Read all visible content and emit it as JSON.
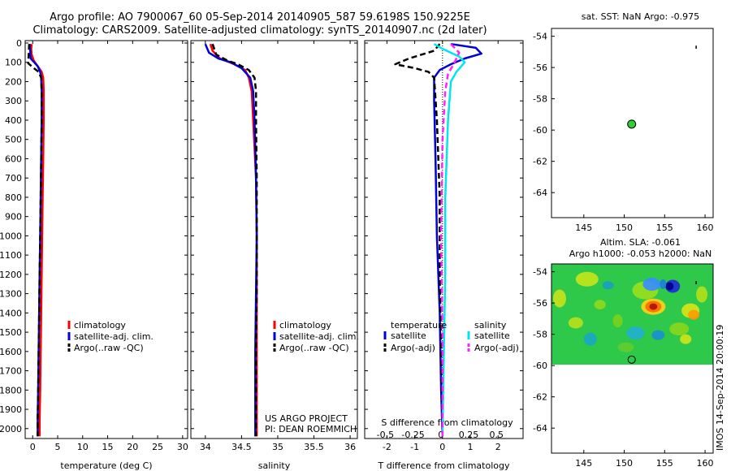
{
  "header": {
    "line1": "Argo profile: AO 7900067_60 05-Sep-2014 20140905_587 59.6198S 150.9225E",
    "line2": "Climatology: CARS2009. Satellite-adjusted climatology: synTS_20140907.nc (2d later)"
  },
  "credits": {
    "project": "US ARGO PROJECT",
    "pi": "PI: DEAN ROEMMICH"
  },
  "side_stamp": "IMOS 14-Sep-2014 20:00:19",
  "colors": {
    "climatology": "#ff0000",
    "satellite": "#0000dd",
    "argo": "#000000",
    "sat_salinity": "#00e5ee",
    "argo_salinity": "#ff22ff"
  },
  "chart_data": [
    {
      "id": "temperature",
      "type": "line",
      "xlabel": "temperature (deg C)",
      "ylabel": "",
      "xlim": [
        -1.5,
        31
      ],
      "ylim": [
        0,
        2060
      ],
      "y_inverted": true,
      "xticks": [
        0,
        5,
        10,
        15,
        20,
        25,
        30
      ],
      "xticklabels": [
        "0",
        "5",
        "10",
        "15",
        "20",
        "25",
        "30"
      ],
      "yticks": [
        0,
        100,
        200,
        300,
        400,
        500,
        600,
        700,
        800,
        900,
        1000,
        1100,
        1200,
        1300,
        1400,
        1500,
        1600,
        1700,
        1800,
        1900,
        2000
      ],
      "yticklabels": [
        "0",
        "100",
        "200",
        "300",
        "400",
        "500",
        "600",
        "700",
        "800",
        "900",
        "1000",
        "1100",
        "1200",
        "1300",
        "1400",
        "1500",
        "1600",
        "1700",
        "1800",
        "1900",
        "2000"
      ],
      "legend": [
        "climatology",
        "satellite-adj. clim.",
        "Argo(..raw -QC)"
      ],
      "series": [
        {
          "name": "climatology",
          "color_key": "climatology",
          "dash": false,
          "points": [
            [
              -0.2,
              5
            ],
            [
              -0.3,
              30
            ],
            [
              -0.2,
              60
            ],
            [
              0.2,
              90
            ],
            [
              1.0,
              120
            ],
            [
              1.8,
              150
            ],
            [
              2.1,
              180
            ],
            [
              2.2,
              250
            ],
            [
              2.2,
              400
            ],
            [
              2.1,
              600
            ],
            [
              2.0,
              800
            ],
            [
              1.9,
              1000
            ],
            [
              1.8,
              1200
            ],
            [
              1.7,
              1400
            ],
            [
              1.6,
              1600
            ],
            [
              1.5,
              1800
            ],
            [
              1.4,
              1950
            ],
            [
              1.4,
              2040
            ]
          ]
        },
        {
          "name": "satellite",
          "color_key": "satellite",
          "dash": false,
          "points": [
            [
              -0.6,
              5
            ],
            [
              -0.5,
              40
            ],
            [
              -0.4,
              80
            ],
            [
              0.3,
              100
            ],
            [
              1.0,
              120
            ],
            [
              1.5,
              150
            ],
            [
              1.7,
              180
            ],
            [
              1.8,
              250
            ],
            [
              1.8,
              400
            ],
            [
              1.7,
              600
            ],
            [
              1.6,
              800
            ],
            [
              1.5,
              1000
            ],
            [
              1.4,
              1200
            ],
            [
              1.3,
              1400
            ],
            [
              1.2,
              1600
            ],
            [
              1.1,
              1800
            ],
            [
              1.0,
              1950
            ],
            [
              1.0,
              2040
            ]
          ]
        },
        {
          "name": "argo",
          "color_key": "argo",
          "dash": true,
          "points": [
            [
              -0.7,
              5
            ],
            [
              -0.8,
              60
            ],
            [
              -0.9,
              105
            ],
            [
              0.0,
              125
            ],
            [
              1.2,
              150
            ],
            [
              1.7,
              180
            ],
            [
              1.8,
              250
            ],
            [
              1.8,
              400
            ],
            [
              1.7,
              600
            ],
            [
              1.6,
              800
            ],
            [
              1.5,
              1000
            ],
            [
              1.4,
              1200
            ],
            [
              1.3,
              1400
            ],
            [
              1.2,
              1600
            ],
            [
              1.1,
              1800
            ],
            [
              1.0,
              1950
            ],
            [
              1.0,
              2040
            ]
          ]
        }
      ]
    },
    {
      "id": "salinity",
      "type": "line",
      "xlabel": "salinity",
      "xlim": [
        33.8,
        36.1
      ],
      "ylim": [
        0,
        2060
      ],
      "y_inverted": true,
      "xticks": [
        34,
        34.5,
        35,
        35.5,
        36
      ],
      "xticklabels": [
        "34",
        "34.5",
        "35",
        "35.5",
        "36"
      ],
      "legend": [
        "climatology",
        "satellite-adj. clim.",
        "Argo(..raw -QC)"
      ],
      "series": [
        {
          "name": "climatology",
          "color_key": "climatology",
          "dash": false,
          "points": [
            [
              34.07,
              5
            ],
            [
              34.1,
              40
            ],
            [
              34.2,
              80
            ],
            [
              34.4,
              110
            ],
            [
              34.55,
              140
            ],
            [
              34.6,
              180
            ],
            [
              34.64,
              250
            ],
            [
              34.66,
              400
            ],
            [
              34.7,
              700
            ],
            [
              34.71,
              1000
            ],
            [
              34.71,
              1300
            ],
            [
              34.71,
              1600
            ],
            [
              34.71,
              2040
            ]
          ]
        },
        {
          "name": "satellite",
          "color_key": "satellite",
          "dash": false,
          "points": [
            [
              34.0,
              5
            ],
            [
              34.05,
              50
            ],
            [
              34.18,
              80
            ],
            [
              34.35,
              100
            ],
            [
              34.5,
              130
            ],
            [
              34.62,
              180
            ],
            [
              34.66,
              250
            ],
            [
              34.68,
              400
            ],
            [
              34.7,
              700
            ],
            [
              34.71,
              1000
            ],
            [
              34.7,
              1300
            ],
            [
              34.69,
              1600
            ],
            [
              34.69,
              2040
            ]
          ]
        },
        {
          "name": "argo",
          "color_key": "argo",
          "dash": true,
          "points": [
            [
              34.1,
              5
            ],
            [
              34.15,
              60
            ],
            [
              34.3,
              90
            ],
            [
              34.45,
              110
            ],
            [
              34.6,
              140
            ],
            [
              34.68,
              180
            ],
            [
              34.7,
              250
            ],
            [
              34.7,
              400
            ],
            [
              34.71,
              700
            ],
            [
              34.71,
              1000
            ],
            [
              34.71,
              1300
            ],
            [
              34.7,
              1600
            ],
            [
              34.7,
              2040
            ]
          ]
        }
      ]
    },
    {
      "id": "difference",
      "type": "line",
      "xlabel": "T difference from climatology",
      "xlabel_top": "S difference from climatology",
      "xlim": [
        -2.8,
        2.9
      ],
      "ylim": [
        0,
        2060
      ],
      "y_inverted": true,
      "xticks": [
        -2,
        -1,
        0,
        1,
        2
      ],
      "xticklabels": [
        "-2",
        "-1",
        "0",
        "1",
        "2"
      ],
      "sticks_label_values": [
        -2,
        -1,
        0,
        1,
        2
      ],
      "sticklabels": [
        "-0.5",
        "-0.25",
        "0",
        "0.25",
        "0.5"
      ],
      "legend_titles": [
        "temperature",
        "salinity"
      ],
      "legend": [
        "satellite",
        "Argo(-adj)",
        "satellite",
        "Argo(-adj)"
      ],
      "series": [
        {
          "name": "T satellite",
          "color_key": "satellite",
          "dash": false,
          "points": [
            [
              0.3,
              5
            ],
            [
              1.2,
              25
            ],
            [
              1.4,
              55
            ],
            [
              0.8,
              80
            ],
            [
              0.3,
              110
            ],
            [
              -0.1,
              140
            ],
            [
              -0.3,
              180
            ],
            [
              -0.3,
              300
            ],
            [
              -0.25,
              600
            ],
            [
              -0.2,
              1000
            ],
            [
              -0.1,
              1400
            ],
            [
              -0.05,
              1800
            ],
            [
              0.0,
              2040
            ]
          ]
        },
        {
          "name": "T Argo",
          "color_key": "argo",
          "dash": true,
          "points": [
            [
              -0.1,
              5
            ],
            [
              -0.3,
              40
            ],
            [
              -1.2,
              80
            ],
            [
              -1.7,
              110
            ],
            [
              -1.0,
              130
            ],
            [
              -0.5,
              150
            ],
            [
              -0.3,
              180
            ],
            [
              -0.2,
              400
            ],
            [
              -0.1,
              800
            ],
            [
              -0.1,
              1200
            ],
            [
              -0.05,
              1600
            ],
            [
              0.0,
              2040
            ]
          ]
        },
        {
          "name": "S satellite",
          "color_key": "sat_salinity",
          "dash": false,
          "points": [
            [
              -0.3,
              5
            ],
            [
              0.0,
              30
            ],
            [
              0.6,
              70
            ],
            [
              0.8,
              100
            ],
            [
              0.5,
              150
            ],
            [
              0.3,
              200
            ],
            [
              0.2,
              400
            ],
            [
              0.1,
              800
            ],
            [
              0.1,
              1200
            ],
            [
              0.05,
              1600
            ],
            [
              0.0,
              2040
            ]
          ]
        },
        {
          "name": "S Argo",
          "color_key": "argo_salinity",
          "dash": true,
          "points": [
            [
              0.3,
              5
            ],
            [
              0.6,
              50
            ],
            [
              0.4,
              110
            ],
            [
              0.2,
              160
            ],
            [
              0.1,
              250
            ],
            [
              0.0,
              500
            ],
            [
              -0.05,
              1000
            ],
            [
              0.0,
              1500
            ],
            [
              0.0,
              2040
            ]
          ]
        }
      ]
    },
    {
      "id": "sst-map",
      "type": "scatter",
      "title": "sat. SST: NaN Argo: -0.975",
      "xlim": [
        141,
        161
      ],
      "ylim": [
        -65.6,
        -53.5
      ],
      "xticks": [
        145,
        150,
        155,
        160
      ],
      "xticklabels": [
        "145",
        "150",
        "155",
        "160"
      ],
      "yticks": [
        -54,
        -56,
        -58,
        -60,
        -62,
        -64
      ],
      "yticklabels": [
        "-54",
        "-56",
        "-58",
        "-60",
        "-62",
        "-64"
      ],
      "argo_position": [
        150.92,
        -59.62
      ],
      "argo_track": [
        [
          158.9,
          -54.6
        ],
        [
          158.9,
          -54.8
        ]
      ]
    },
    {
      "id": "sla-map",
      "type": "heatmap",
      "title_line1": "Altim. SLA: -0.061",
      "title_line2": "Argo h1000: -0.053 h2000: NaN",
      "xlim": [
        141,
        161
      ],
      "ylim": [
        -65.6,
        -53.5
      ],
      "data_lat_range": [
        -60,
        -53.5
      ],
      "xticks": [
        145,
        150,
        155,
        160
      ],
      "xticklabels": [
        "145",
        "150",
        "155",
        "160"
      ],
      "yticks": [
        -54,
        -56,
        -58,
        -60,
        -62,
        -64
      ],
      "yticklabels": [
        "-54",
        "-56",
        "-58",
        "-60",
        "-62",
        "-64"
      ],
      "argo_position": [
        150.92,
        -59.62
      ],
      "argo_track": [
        [
          158.9,
          -54.6
        ],
        [
          158.9,
          -54.8
        ]
      ]
    }
  ]
}
